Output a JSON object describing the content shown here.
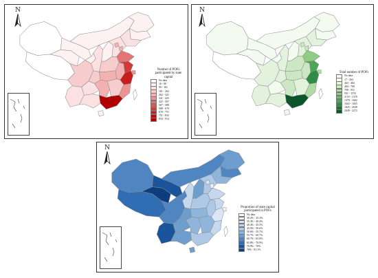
{
  "north_label": "N",
  "map1": {
    "legend_title": "Number of POFs participated by state capital",
    "classes": [
      {
        "label": "No data",
        "color": "#ffffff"
      },
      {
        "label": "16 - 90",
        "color": "#fdf1f1"
      },
      {
        "label": "90 - 181",
        "color": "#fbe1e1"
      },
      {
        "label": "181 - 262",
        "color": "#f7cccc"
      },
      {
        "label": "262 - 341",
        "color": "#f2b2b2"
      },
      {
        "label": "341 - 425",
        "color": "#ec9494"
      },
      {
        "label": "425 - 507",
        "color": "#e57474"
      },
      {
        "label": "507 - 588",
        "color": "#dd5555"
      },
      {
        "label": "588 - 670",
        "color": "#d43838"
      },
      {
        "label": "670 - 751",
        "color": "#c91c1c"
      },
      {
        "label": "751 - 833",
        "color": "#bc0b0b"
      },
      {
        "label": "833 - 914",
        "color": "#b00000"
      }
    ]
  },
  "map2": {
    "legend_title": "Total number of POFs",
    "classes": [
      {
        "label": "No data",
        "color": "#ffffff"
      },
      {
        "label": "17 - 263",
        "color": "#f3faf0"
      },
      {
        "label": "263 - 484",
        "color": "#e3f2dc"
      },
      {
        "label": "484 - 708",
        "color": "#cce8c2"
      },
      {
        "label": "708 - 931",
        "color": "#b0dca3"
      },
      {
        "label": "931 - 1155",
        "color": "#8fcd85"
      },
      {
        "label": "1155 - 1378",
        "color": "#6ebc6a"
      },
      {
        "label": "1378 - 1602",
        "color": "#4da657"
      },
      {
        "label": "1602 - 1825",
        "color": "#2f8c46"
      },
      {
        "label": "1825 - 2049",
        "color": "#1a7038"
      },
      {
        "label": "2049 - 2272",
        "color": "#0a552a"
      }
    ]
  },
  "map3": {
    "legend_title": "Proportion of state capital participated in POFs",
    "classes": [
      {
        "label": "No data",
        "color": "#ffffff"
      },
      {
        "label": "30.2% - 35.3%",
        "color": "#eef3fa"
      },
      {
        "label": "35.3% - 40.4%",
        "color": "#dbe6f4"
      },
      {
        "label": "40.4% - 45.5%",
        "color": "#c6d8ee"
      },
      {
        "label": "45.5% - 50.6%",
        "color": "#adc9e6"
      },
      {
        "label": "50.6% - 55.7%",
        "color": "#8fb5db"
      },
      {
        "label": "55.7% - 60.7%",
        "color": "#6e9ece"
      },
      {
        "label": "60.7% - 65.8%",
        "color": "#4f86c1"
      },
      {
        "label": "65.8% - 70.9%",
        "color": "#316db2"
      },
      {
        "label": "70.9% - 76%",
        "color": "#1a559b"
      },
      {
        "label": "76% - 81.1%",
        "color": "#0c3d7e"
      }
    ]
  },
  "provinces": [
    "Xinjiang",
    "Tibet",
    "Qinghai",
    "Gansu",
    "Inner Mongolia",
    "Heilongjiang",
    "Jilin",
    "Liaoning",
    "Ningxia",
    "Shaanxi",
    "Shanxi",
    "Hebei",
    "Beijing",
    "Tianjin",
    "Shandong",
    "Henan",
    "Sichuan",
    "Chongqing",
    "Hubei",
    "Anhui",
    "Jiangsu",
    "Shanghai",
    "Zhejiang",
    "Yunnan",
    "Guizhou",
    "Hunan",
    "Jiangxi",
    "Fujian",
    "Guangxi",
    "Guangdong",
    "Hainan",
    "Taiwan"
  ],
  "fills": {
    "map1": {
      "Xinjiang": "#ffffff",
      "Tibet": "#ffffff",
      "Qinghai": "#fdf1f1",
      "Gansu": "#fdf1f1",
      "Inner Mongolia": "#fdf1f1",
      "Heilongjiang": "#fdf1f1",
      "Jilin": "#fdf1f1",
      "Liaoning": "#fbe1e1",
      "Ningxia": "#fdf1f1",
      "Shaanxi": "#fbe1e1",
      "Shanxi": "#fdf1f1",
      "Hebei": "#fbe1e1",
      "Beijing": "#f2b2b2",
      "Tianjin": "#f2b2b2",
      "Shandong": "#e57474",
      "Henan": "#f7cccc",
      "Sichuan": "#f7cccc",
      "Chongqing": "#f7cccc",
      "Hubei": "#f2b2b2",
      "Anhui": "#f2b2b2",
      "Jiangsu": "#d43838",
      "Shanghai": "#ec9494",
      "Zhejiang": "#c91c1c",
      "Yunnan": "#fbe1e1",
      "Guizhou": "#fbe1e1",
      "Hunan": "#f2b2b2",
      "Jiangxi": "#f7cccc",
      "Fujian": "#ec9494",
      "Guangxi": "#fbe1e1",
      "Guangdong": "#b00000",
      "Hainan": "#fdf1f1",
      "Taiwan": "#ffffff"
    },
    "map2": {
      "Xinjiang": "#f3faf0",
      "Tibet": "#ffffff",
      "Qinghai": "#f3faf0",
      "Gansu": "#f3faf0",
      "Inner Mongolia": "#f3faf0",
      "Heilongjiang": "#f3faf0",
      "Jilin": "#f3faf0",
      "Liaoning": "#e3f2dc",
      "Ningxia": "#f3faf0",
      "Shaanxi": "#e3f2dc",
      "Shanxi": "#f3faf0",
      "Hebei": "#e3f2dc",
      "Beijing": "#cce8c2",
      "Tianjin": "#cce8c2",
      "Shandong": "#8fcd85",
      "Henan": "#cce8c2",
      "Sichuan": "#e3f2dc",
      "Chongqing": "#e3f2dc",
      "Hubei": "#cce8c2",
      "Anhui": "#cce8c2",
      "Jiangsu": "#4da657",
      "Shanghai": "#b0dca3",
      "Zhejiang": "#2f8c46",
      "Yunnan": "#e3f2dc",
      "Guizhou": "#f3faf0",
      "Hunan": "#cce8c2",
      "Jiangxi": "#e3f2dc",
      "Fujian": "#b0dca3",
      "Guangxi": "#e3f2dc",
      "Guangdong": "#0a552a",
      "Hainan": "#f3faf0",
      "Taiwan": "#ffffff"
    },
    "map3": {
      "Xinjiang": "#4f86c1",
      "Tibet": "#316db2",
      "Qinghai": "#0c3d7e",
      "Gansu": "#1a559b",
      "Inner Mongolia": "#4f86c1",
      "Heilongjiang": "#6e9ece",
      "Jilin": "#4f86c1",
      "Liaoning": "#8fb5db",
      "Ningxia": "#4f86c1",
      "Shaanxi": "#c6d8ee",
      "Shanxi": "#6e9ece",
      "Hebei": "#adc9e6",
      "Beijing": "#dbe6f4",
      "Tianjin": "#eef3fa",
      "Shandong": "#c6d8ee",
      "Henan": "#adc9e6",
      "Sichuan": "#4f86c1",
      "Chongqing": "#6e9ece",
      "Hubei": "#8fb5db",
      "Anhui": "#adc9e6",
      "Jiangsu": "#c6d8ee",
      "Shanghai": "#eef3fa",
      "Zhejiang": "#dbe6f4",
      "Yunnan": "#1a559b",
      "Guizhou": "#6e9ece",
      "Hunan": "#8fb5db",
      "Jiangxi": "#8fb5db",
      "Fujian": "#c6d8ee",
      "Guangxi": "#6e9ece",
      "Guangdong": "#adc9e6",
      "Hainan": "#6e9ece",
      "Taiwan": "#ffffff"
    }
  }
}
